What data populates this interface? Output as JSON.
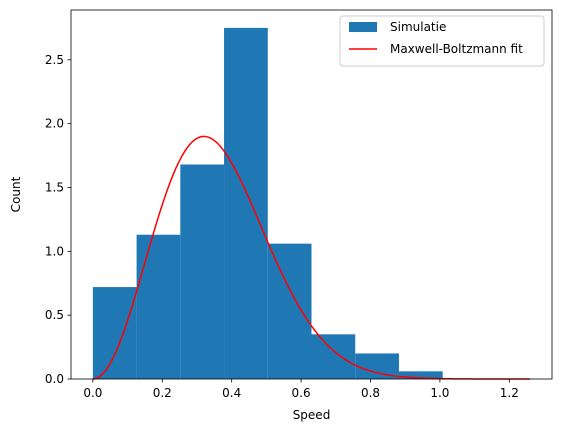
{
  "chart_data": {
    "type": "bar",
    "xlabel": "Speed",
    "ylabel": "Count",
    "xlim": [
      -0.063,
      1.323
    ],
    "ylim": [
      0.0,
      2.89
    ],
    "xticks": [
      0.0,
      0.2,
      0.4,
      0.6,
      0.8,
      1.0,
      1.2
    ],
    "xtick_labels": [
      "0.0",
      "0.2",
      "0.4",
      "0.6",
      "0.8",
      "1.0",
      "1.2"
    ],
    "yticks": [
      0.0,
      0.5,
      1.0,
      1.5,
      2.0,
      2.5
    ],
    "ytick_labels": [
      "0.0",
      "0.5",
      "1.0",
      "1.5",
      "2.0",
      "2.5"
    ],
    "grid": false,
    "legend_position": "top-right",
    "legend": [
      "Simulatie",
      "Maxwell-Boltzmann fit"
    ],
    "colors": {
      "histogram": "#1f77b4",
      "fit": "#ff0000"
    },
    "histogram": {
      "name": "Simulatie",
      "bin_edges": [
        0.0,
        0.126,
        0.252,
        0.378,
        0.504,
        0.63,
        0.756,
        0.882,
        1.008
      ],
      "values": [
        0.72,
        1.13,
        1.68,
        2.75,
        1.06,
        0.35,
        0.2,
        0.06
      ]
    },
    "fit_curve": {
      "name": "Maxwell-Boltzmann fit",
      "x_range": [
        0.0,
        1.26
      ],
      "peak": [
        0.32,
        1.9
      ]
    }
  }
}
